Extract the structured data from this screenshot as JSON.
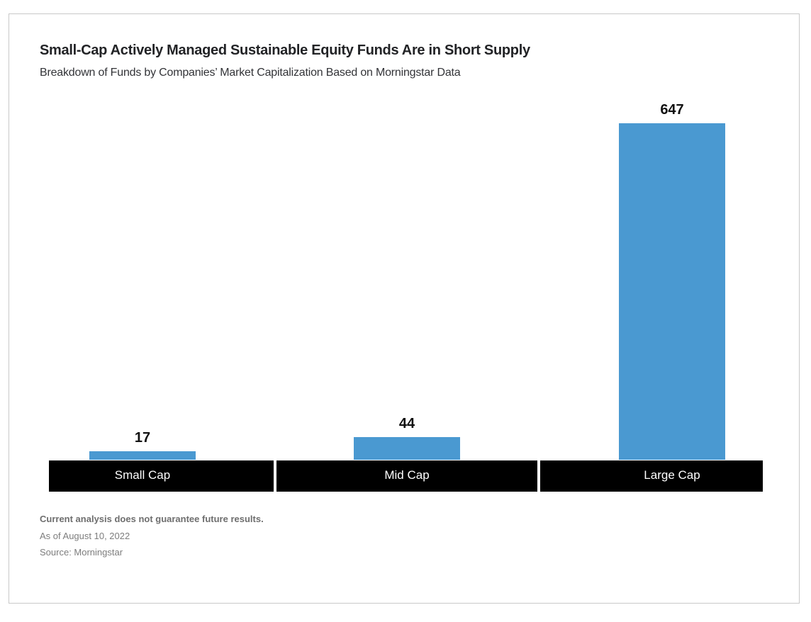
{
  "chart_data": {
    "type": "bar",
    "title": "Small-Cap Actively Managed Sustainable Equity Funds Are in Short Supply",
    "subtitle": "Breakdown of Funds by Companies’ Market Capitalization Based on Morningstar Data",
    "categories": [
      "Small Cap",
      "Mid Cap",
      "Large Cap"
    ],
    "values": [
      17,
      44,
      647
    ],
    "value_labels": [
      "17",
      "44",
      "647"
    ],
    "xlabel": "",
    "ylabel": "",
    "ylim": [
      0,
      700
    ],
    "grid": false,
    "legend_position": "none",
    "bar_color": "#4A99D1",
    "category_band_bg": "#000000",
    "category_band_text_color": "#FFFFFF",
    "value_label_color": "#111111"
  },
  "footer": {
    "disclaimer": "Current analysis does not guarantee future results.",
    "as_of": "As of August 10, 2022",
    "source": "Source: Morningstar"
  }
}
